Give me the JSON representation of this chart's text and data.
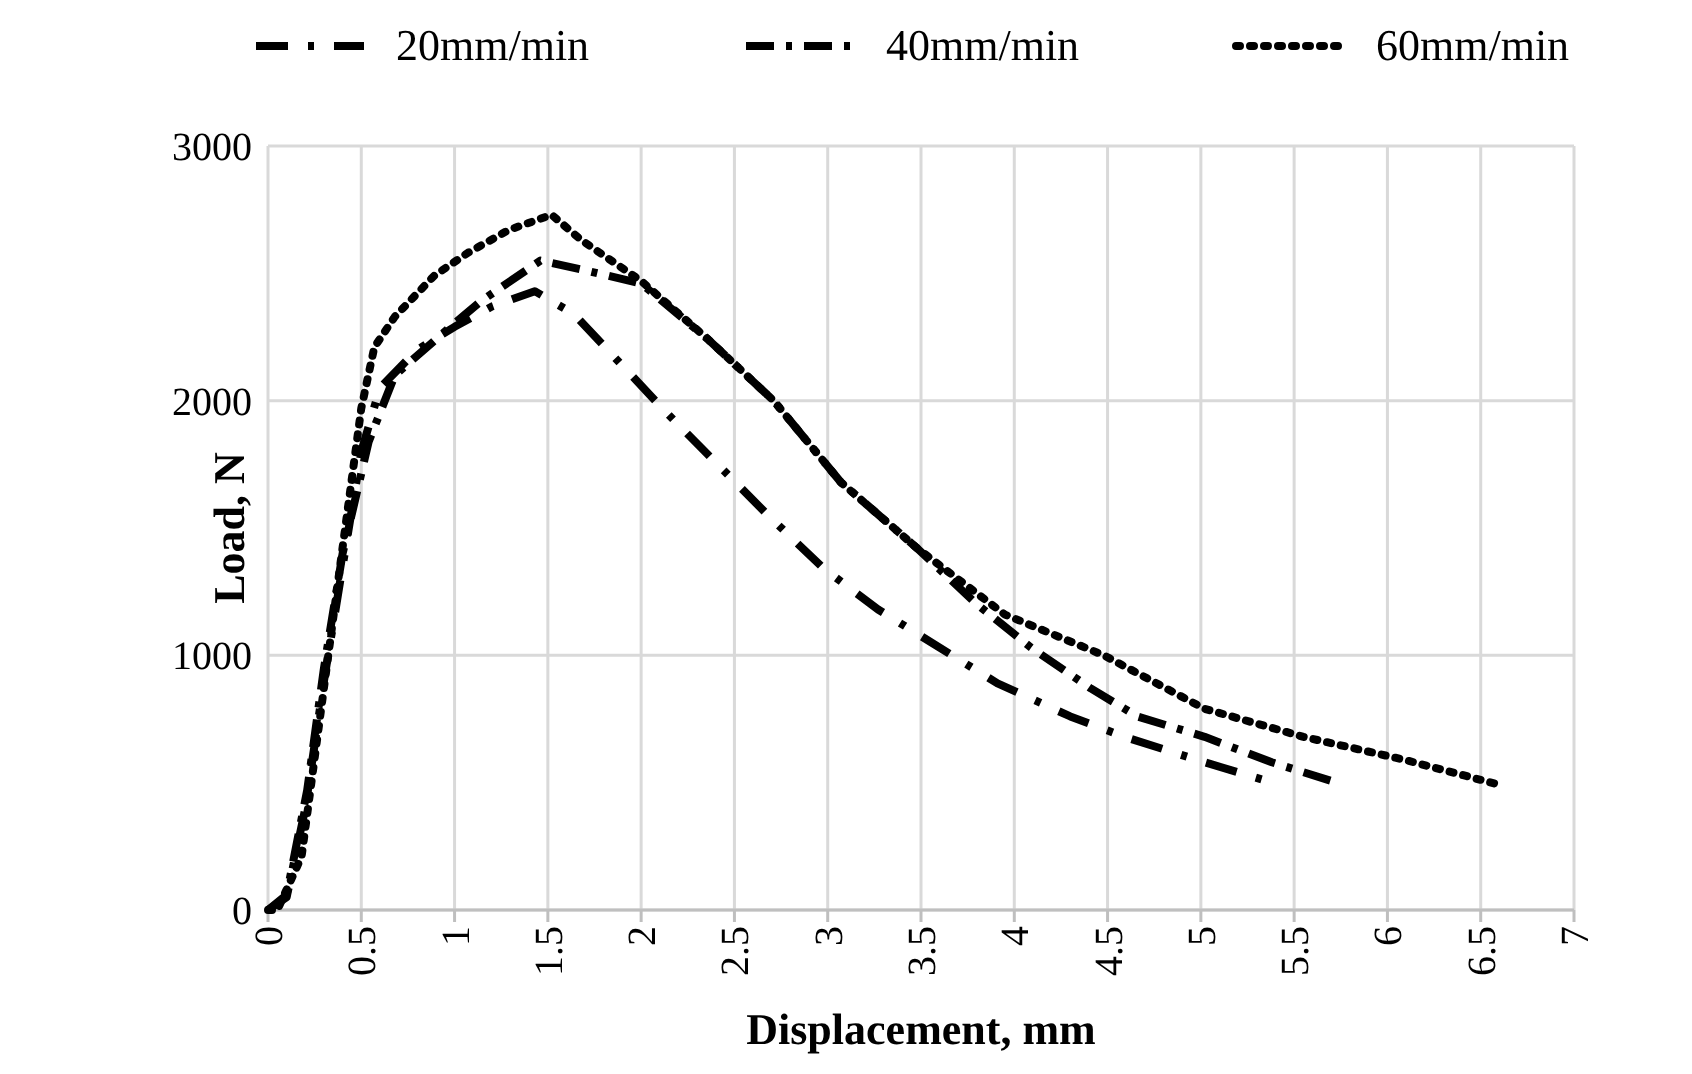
{
  "chart_data": {
    "type": "line",
    "xlabel": "Displacement, mm",
    "ylabel": "Load, N",
    "xlim": [
      0,
      7
    ],
    "ylim": [
      0,
      3000
    ],
    "xticks": [
      0,
      0.5,
      1,
      1.5,
      2,
      2.5,
      3,
      3.5,
      4,
      4.5,
      5,
      5.5,
      6,
      6.5,
      7
    ],
    "yticks": [
      0,
      1000,
      2000,
      3000
    ],
    "grid": true,
    "legend": "top",
    "marker": "none",
    "series": [
      {
        "name": "20mm/min",
        "color": "#000000",
        "line_style": "dashdot",
        "x": [
          0,
          0.1,
          0.2,
          0.3,
          0.4,
          0.5,
          0.6,
          0.8,
          1.0,
          1.2,
          1.43,
          1.64,
          2.14,
          2.68,
          2.98,
          3.27,
          3.91,
          4.3,
          4.59,
          5.02,
          5.34
        ],
        "values": [
          0,
          50,
          400,
          900,
          1350,
          1800,
          2050,
          2200,
          2290,
          2370,
          2430,
          2340,
          1950,
          1550,
          1340,
          1180,
          890,
          760,
          680,
          580,
          510
        ]
      },
      {
        "name": "40mm/min",
        "color": "#000000",
        "line_style": "dashed",
        "x": [
          0,
          0.1,
          0.21,
          0.3,
          0.4,
          0.54,
          0.68,
          0.93,
          1.14,
          1.46,
          1.71,
          2.0,
          2.36,
          2.71,
          3.07,
          3.48,
          3.8,
          4.09,
          4.41,
          4.66,
          5.02,
          5.38,
          5.73
        ],
        "values": [
          0,
          60,
          470,
          950,
          1400,
          1840,
          2100,
          2260,
          2390,
          2550,
          2510,
          2460,
          2240,
          2000,
          1680,
          1420,
          1200,
          1030,
          870,
          760,
          680,
          580,
          500
        ]
      },
      {
        "name": "60mm/min",
        "color": "#000000",
        "line_style": "dotted",
        "x": [
          0,
          0.05,
          0.18,
          0.39,
          0.5,
          0.57,
          0.68,
          0.89,
          1.07,
          1.29,
          1.52,
          1.68,
          2.0,
          2.36,
          2.71,
          3.07,
          3.48,
          3.95,
          4.48,
          5.02,
          5.55,
          6.09,
          6.61
        ],
        "values": [
          0,
          0,
          210,
          1370,
          1970,
          2210,
          2330,
          2490,
          2580,
          2670,
          2730,
          2630,
          2470,
          2240,
          2000,
          1680,
          1420,
          1160,
          1000,
          790,
          680,
          590,
          490
        ]
      }
    ]
  }
}
